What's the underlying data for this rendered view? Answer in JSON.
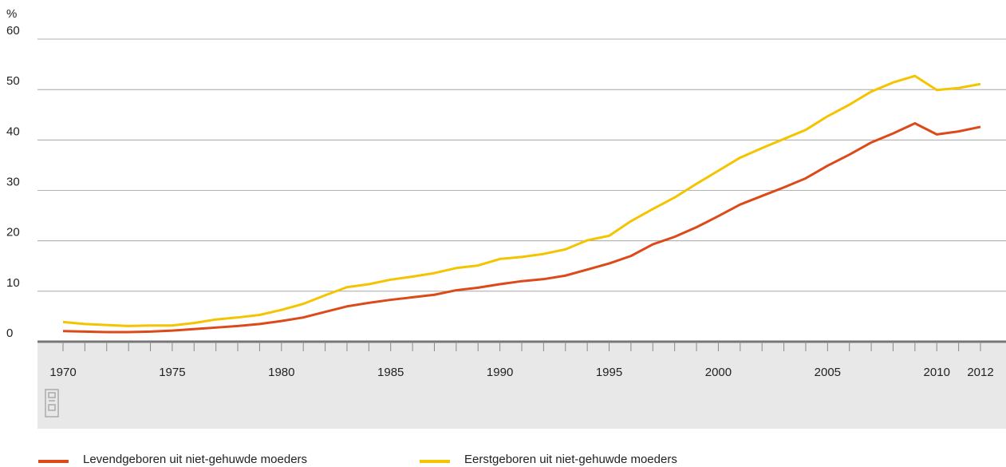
{
  "chart_data": {
    "type": "line",
    "y_unit_label": "%",
    "x": [
      1970,
      1971,
      1972,
      1973,
      1974,
      1975,
      1976,
      1977,
      1978,
      1979,
      1980,
      1981,
      1982,
      1983,
      1984,
      1985,
      1986,
      1987,
      1988,
      1989,
      1990,
      1991,
      1992,
      1993,
      1994,
      1995,
      1996,
      1997,
      1998,
      1999,
      2000,
      2001,
      2002,
      2003,
      2004,
      2005,
      2006,
      2007,
      2008,
      2009,
      2010,
      2011,
      2012
    ],
    "series": [
      {
        "name": "Levendgeboren uit niet-gehuwde moeders",
        "color": "#dc4a19",
        "values": [
          2.1,
          2.0,
          1.9,
          1.9,
          2.0,
          2.2,
          2.5,
          2.8,
          3.1,
          3.5,
          4.1,
          4.8,
          5.9,
          7.0,
          7.7,
          8.3,
          8.8,
          9.3,
          10.2,
          10.7,
          11.4,
          12.0,
          12.4,
          13.1,
          14.3,
          15.5,
          17.0,
          19.3,
          20.8,
          22.7,
          24.9,
          27.2,
          28.9,
          30.6,
          32.4,
          34.9,
          37.1,
          39.5,
          41.3,
          43.3,
          41.1,
          41.7,
          42.6
        ]
      },
      {
        "name": "Eerstgeboren uit niet-gehuwde moeders",
        "color": "#f5c400",
        "values": [
          3.9,
          3.5,
          3.3,
          3.1,
          3.2,
          3.2,
          3.7,
          4.4,
          4.8,
          5.3,
          6.3,
          7.5,
          9.2,
          10.8,
          11.4,
          12.3,
          12.9,
          13.6,
          14.6,
          15.1,
          16.4,
          16.8,
          17.4,
          18.3,
          20.1,
          21.0,
          23.9,
          26.3,
          28.6,
          31.3,
          33.9,
          36.5,
          38.4,
          40.2,
          42.0,
          44.7,
          47.0,
          49.6,
          51.4,
          52.7,
          49.9,
          50.3,
          51.1
        ]
      }
    ],
    "xlim": [
      1970,
      2012
    ],
    "xticks": [
      1970,
      1975,
      1980,
      1985,
      1990,
      1995,
      2000,
      2005,
      2010,
      2012
    ],
    "ylim": [
      0,
      60
    ],
    "yticks": [
      0,
      10,
      20,
      30,
      40,
      50,
      60
    ],
    "grid": true,
    "legend": "bottom"
  }
}
